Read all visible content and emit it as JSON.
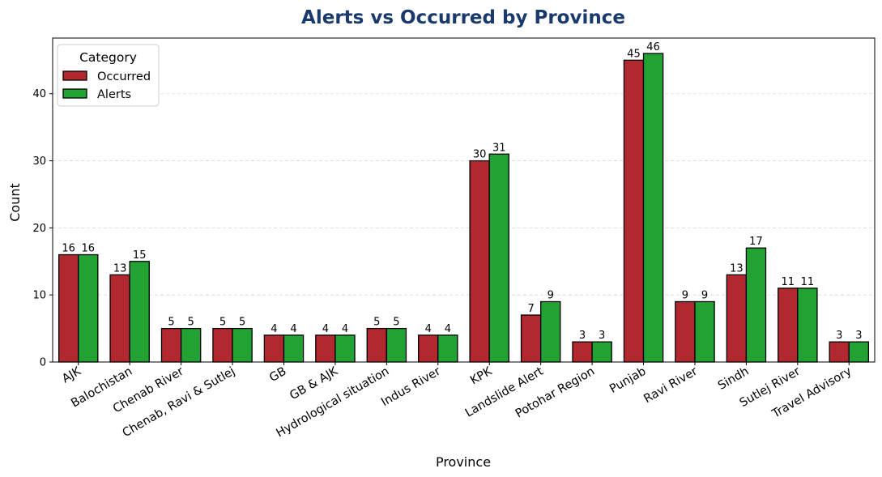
{
  "chart_data": {
    "type": "bar",
    "title": "Alerts vs Occurred by Province",
    "xlabel": "Province",
    "ylabel": "Count",
    "ylim": [
      0,
      48.3
    ],
    "yticks": [
      0,
      10,
      20,
      30,
      40
    ],
    "grid": "y-dashed",
    "legend": {
      "title": "Category",
      "placement": "top-left"
    },
    "categories": [
      "AJK",
      "Balochistan",
      "Chenab River",
      "Chenab, Ravi & Sutlej",
      "GB",
      "GB & AJK",
      "Hydrological situation",
      "Indus River",
      "KPK",
      "Landslide Alert",
      "Potohar Region",
      "Punjab",
      "Ravi River",
      "Sindh",
      "Sutlej River",
      "Travel Advisory"
    ],
    "series": [
      {
        "name": "Occurred",
        "color": "#b2282f",
        "values": [
          16,
          13,
          5,
          5,
          4,
          4,
          5,
          4,
          30,
          7,
          3,
          45,
          9,
          13,
          11,
          3
        ]
      },
      {
        "name": "Alerts",
        "color": "#22a232",
        "values": [
          16,
          15,
          5,
          5,
          4,
          4,
          5,
          4,
          31,
          9,
          3,
          46,
          9,
          17,
          11,
          3
        ]
      }
    ]
  },
  "colors": {
    "title": "#1a3a6e",
    "grid": "#d9d9d9",
    "axis": "#000000"
  }
}
